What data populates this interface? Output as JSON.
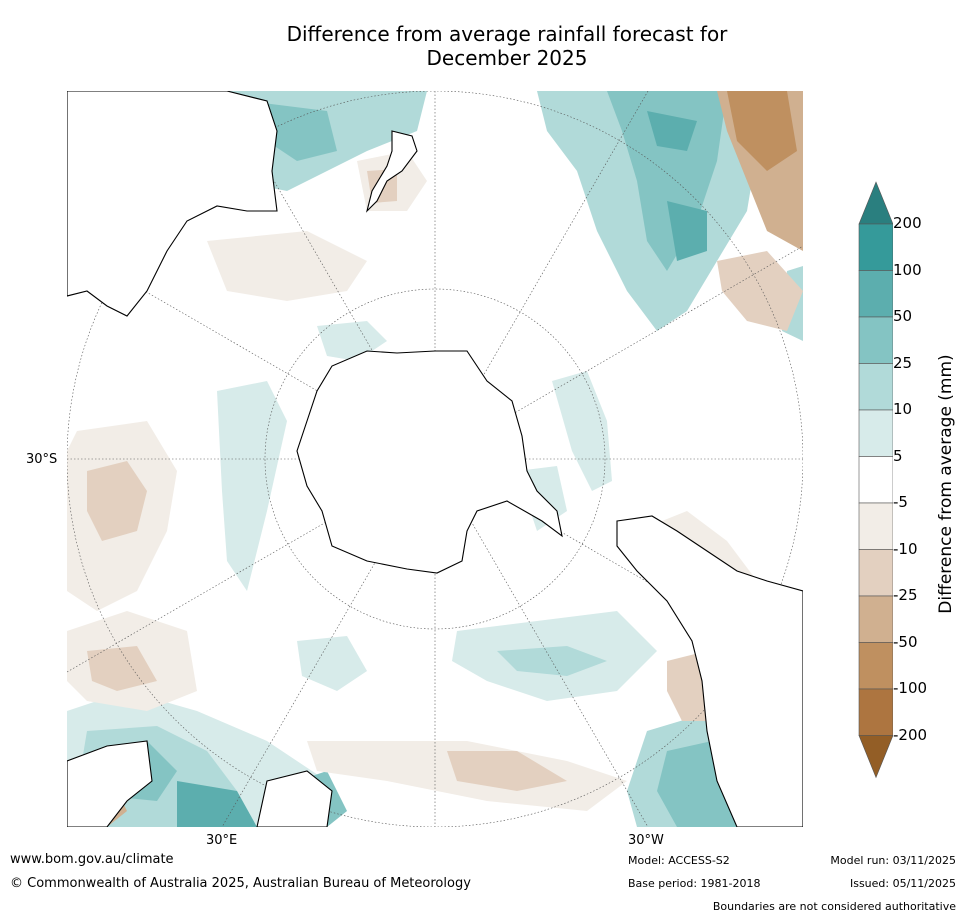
{
  "title": {
    "line1": "Difference from average rainfall forecast for",
    "line2": "December 2025"
  },
  "map": {
    "projection": "south-polar-stereographic",
    "lat_label": "30°S",
    "lon_labels": [
      "30°E",
      "30°W"
    ],
    "landmasses": [
      "Antarctica",
      "Australia",
      "New Zealand",
      "South America",
      "Africa",
      "Madagascar"
    ]
  },
  "legend": {
    "title": "Difference from average (mm)",
    "ticks": [
      "200",
      "100",
      "50",
      "25",
      "10",
      "5",
      "-5",
      "-10",
      "-25",
      "-50",
      "-100",
      "-200"
    ],
    "colors": [
      "#2a7f7f",
      "#359a9a",
      "#5caeae",
      "#84c4c3",
      "#b1dad9",
      "#d7ebea",
      "#ffffff",
      "#f2ede7",
      "#e3d0c0",
      "#d0b090",
      "#bf9060",
      "#ad7540",
      "#935e26"
    ]
  },
  "footer": {
    "website": "www.bom.gov.au/climate",
    "copyright": "© Commonwealth of Australia 2025, Australian Bureau of Meteorology",
    "model": "Model: ACCESS-S2",
    "base_period": "Base period: 1981-2018",
    "model_run": "Model run: 03/11/2025",
    "issued": "Issued: 05/11/2025",
    "disclaimer": "Boundaries are not considered authoritative"
  }
}
